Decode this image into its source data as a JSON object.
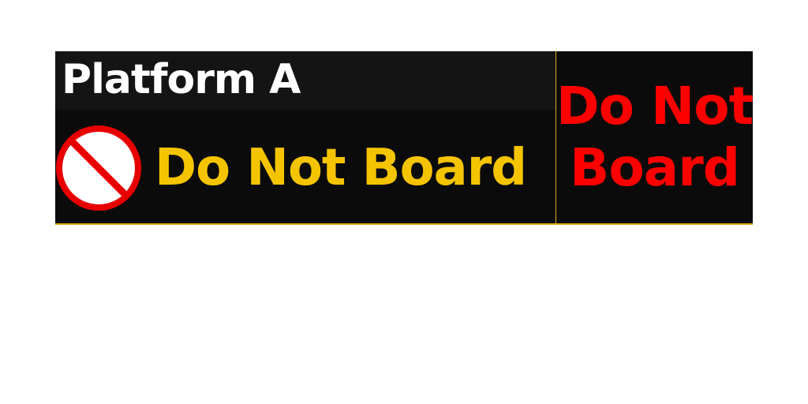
{
  "sign": {
    "platform": "Platform A",
    "status": "Do Not Board",
    "side_status_line1": "Do Not",
    "side_status_line2": "Board",
    "icon": "no-entry-icon"
  },
  "colors": {
    "background": "#0b0b0b",
    "title_text": "#ffffff",
    "status_text": "#f5c400",
    "side_status_text": "#ff0000",
    "accent_line": "#e6a817",
    "icon_red": "#e80000"
  }
}
